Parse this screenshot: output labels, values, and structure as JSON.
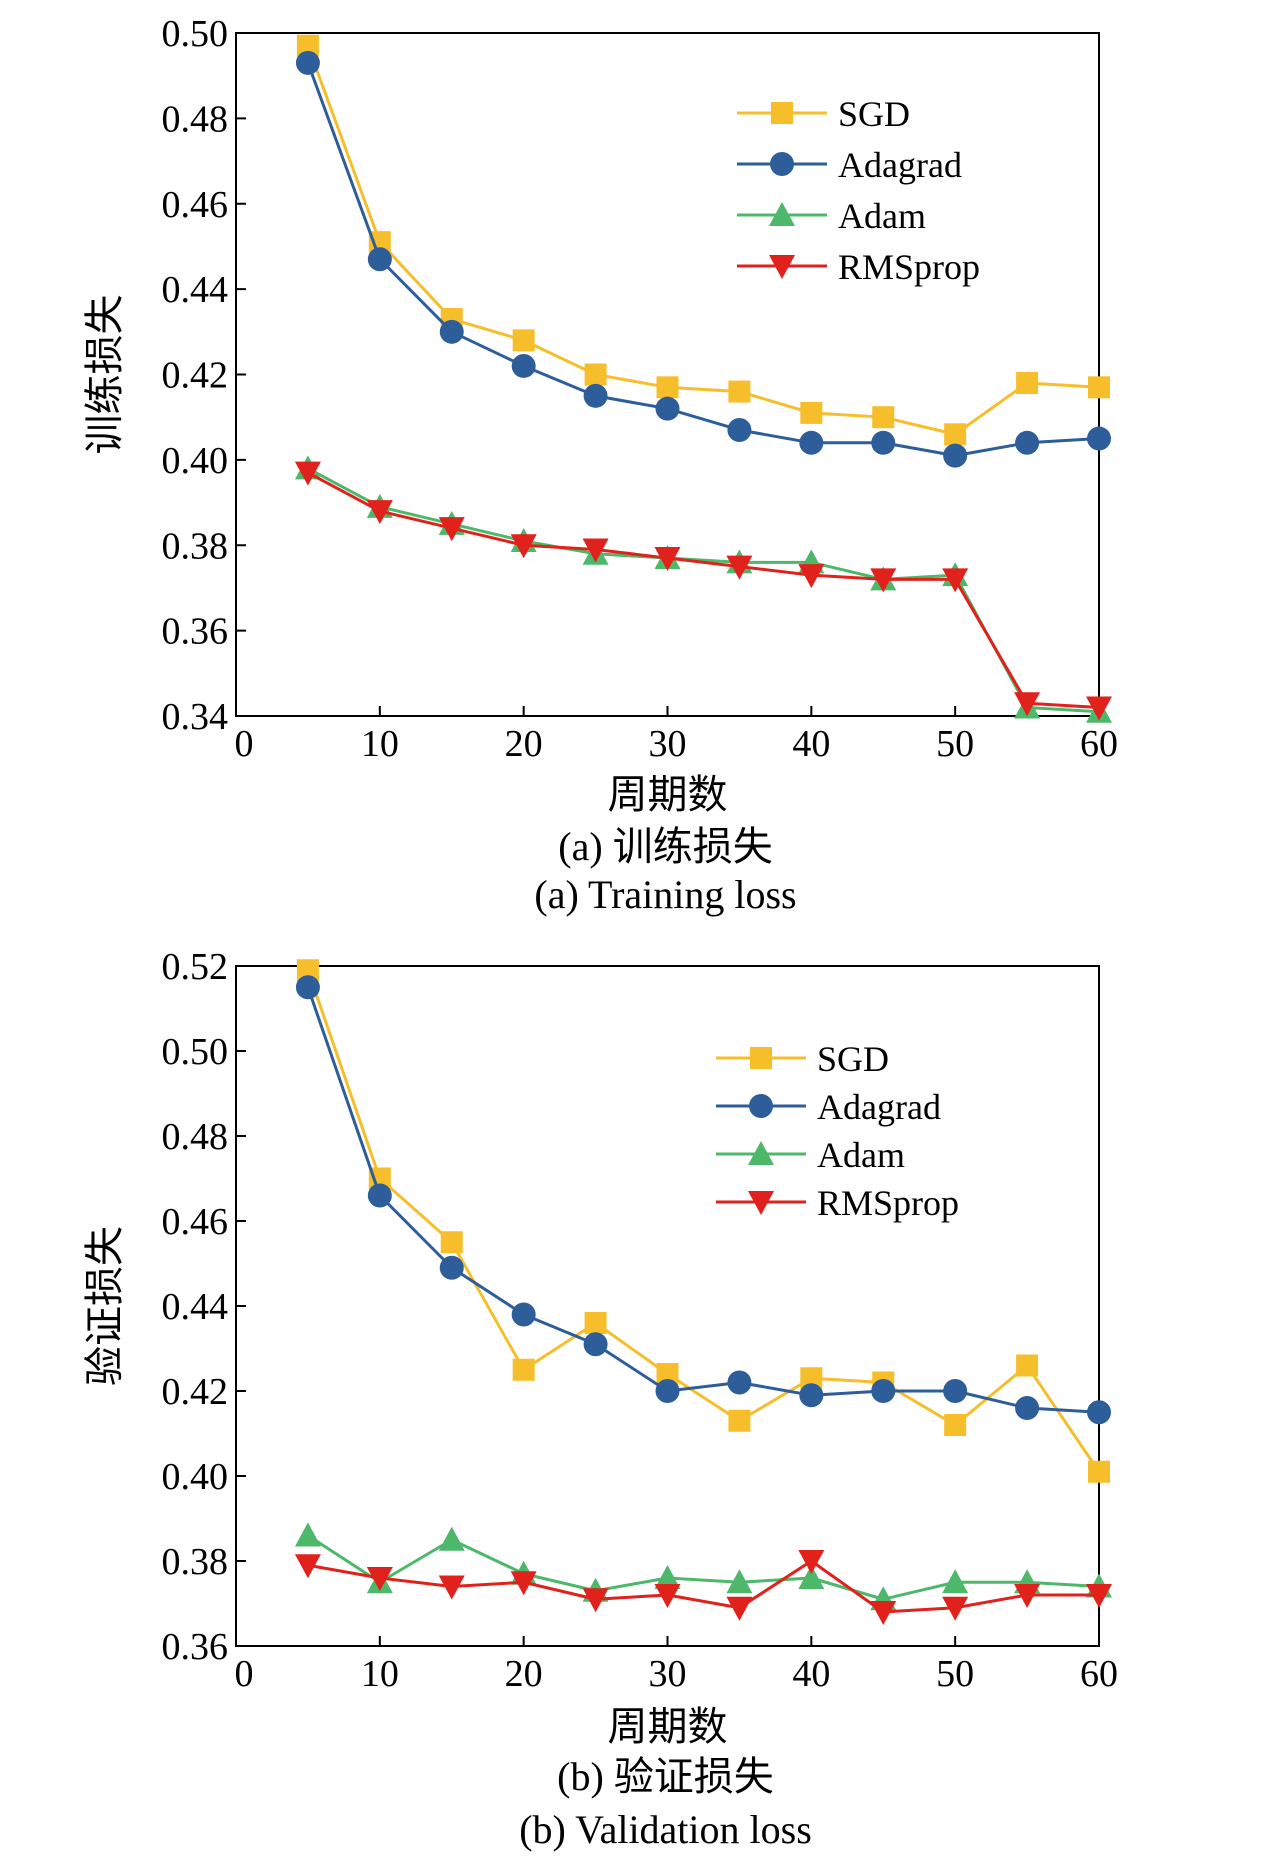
{
  "series_styles": [
    {
      "color": "#F5BE2A",
      "marker": "square"
    },
    {
      "color": "#2E5E9A",
      "marker": "circle"
    },
    {
      "color": "#4DB86A",
      "marker": "triangle-up"
    },
    {
      "color": "#E0211C",
      "marker": "triangle-down"
    }
  ],
  "chart_data": [
    {
      "type": "line",
      "xlabel": "周期数",
      "ylabel": "训练损失",
      "caption_cn": "(a) 训练损失",
      "caption_en": "(a) Training loss",
      "xlim": [
        0,
        60
      ],
      "ylim": [
        0.34,
        0.5
      ],
      "x_ticks": [
        "0",
        "10",
        "20",
        "30",
        "40",
        "50",
        "60"
      ],
      "y_ticks": [
        "0.34",
        "0.36",
        "0.38",
        "0.40",
        "0.42",
        "0.44",
        "0.46",
        "0.48",
        "0.50"
      ],
      "x": [
        5,
        10,
        15,
        20,
        25,
        30,
        35,
        40,
        45,
        50,
        55,
        60
      ],
      "legend_position": "top-right",
      "grid": false,
      "series": [
        {
          "name": "SGD",
          "values": [
            0.497,
            0.451,
            0.433,
            0.428,
            0.42,
            0.417,
            0.416,
            0.411,
            0.41,
            0.406,
            0.418,
            0.417
          ]
        },
        {
          "name": "Adagrad",
          "values": [
            0.493,
            0.447,
            0.43,
            0.422,
            0.415,
            0.412,
            0.407,
            0.404,
            0.404,
            0.401,
            0.404,
            0.405
          ]
        },
        {
          "name": "Adam",
          "values": [
            0.398,
            0.389,
            0.385,
            0.381,
            0.378,
            0.377,
            0.376,
            0.376,
            0.372,
            0.373,
            0.342,
            0.341
          ]
        },
        {
          "name": "RMSprop",
          "values": [
            0.397,
            0.388,
            0.384,
            0.38,
            0.379,
            0.377,
            0.375,
            0.373,
            0.372,
            0.372,
            0.343,
            0.342
          ]
        }
      ]
    },
    {
      "type": "line",
      "xlabel": "周期数",
      "ylabel": "验证损失",
      "caption_cn": "(b) 验证损失",
      "caption_en": "(b) Validation loss",
      "xlim": [
        0,
        60
      ],
      "ylim": [
        0.36,
        0.52
      ],
      "x_ticks": [
        "0",
        "10",
        "20",
        "30",
        "40",
        "50",
        "60"
      ],
      "y_ticks": [
        "0.36",
        "0.38",
        "0.40",
        "0.42",
        "0.44",
        "0.46",
        "0.48",
        "0.50",
        "0.52"
      ],
      "x": [
        5,
        10,
        15,
        20,
        25,
        30,
        35,
        40,
        45,
        50,
        55,
        60
      ],
      "legend_position": "top-right",
      "grid": false,
      "series": [
        {
          "name": "SGD",
          "values": [
            0.519,
            0.47,
            0.455,
            0.425,
            0.436,
            0.424,
            0.413,
            0.423,
            0.422,
            0.412,
            0.426,
            0.401
          ]
        },
        {
          "name": "Adagrad",
          "values": [
            0.515,
            0.466,
            0.449,
            0.438,
            0.431,
            0.42,
            0.422,
            0.419,
            0.42,
            0.42,
            0.416,
            0.415
          ]
        },
        {
          "name": "Adam",
          "values": [
            0.386,
            0.375,
            0.385,
            0.377,
            0.373,
            0.376,
            0.375,
            0.376,
            0.371,
            0.375,
            0.375,
            0.374
          ]
        },
        {
          "name": "RMSprop",
          "values": [
            0.379,
            0.376,
            0.374,
            0.375,
            0.371,
            0.372,
            0.369,
            0.38,
            0.368,
            0.369,
            0.372,
            0.372
          ]
        }
      ]
    }
  ]
}
